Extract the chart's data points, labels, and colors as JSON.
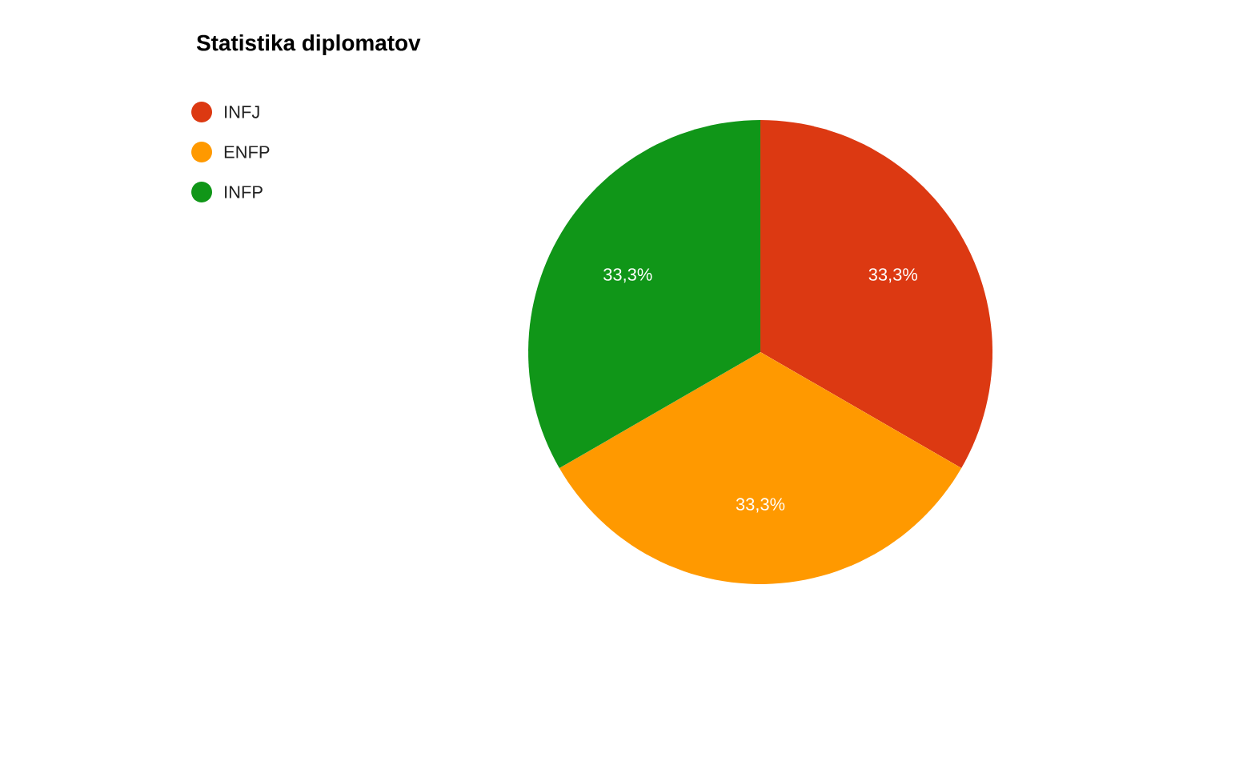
{
  "chart_data": {
    "type": "pie",
    "title": "Statistika diplomatov",
    "categories": [
      "INFJ",
      "ENFP",
      "INFP"
    ],
    "values": [
      33.3,
      33.3,
      33.3
    ],
    "value_labels": [
      "33,3%",
      "33,3%",
      "33,3%"
    ],
    "colors": [
      "#dc3912",
      "#ff9900",
      "#109618"
    ],
    "legend": "top left"
  }
}
